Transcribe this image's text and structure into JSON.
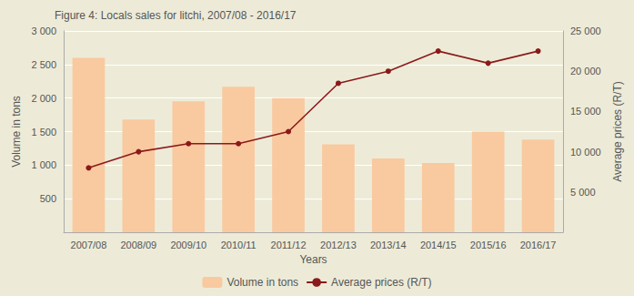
{
  "chart_data": {
    "type": "bar",
    "title": "Figure 4: Locals sales for litchi, 2007/08 - 2016/17",
    "xlabel": "Years",
    "ylabel": "Volume in tons",
    "y2label": "Average prices (R/T)",
    "categories": [
      "2007/08",
      "2008/09",
      "2009/10",
      "2010/11",
      "2011/12",
      "2012/13",
      "2013/14",
      "2014/15",
      "2015/16",
      "2016/17"
    ],
    "series": [
      {
        "name": "Volume in tons",
        "type": "bar",
        "color": "#f9c9a0",
        "values": [
          2600,
          1680,
          1950,
          2170,
          2000,
          1310,
          1100,
          1030,
          1500,
          1380
        ]
      },
      {
        "name": "Average prices (R/T)",
        "type": "line",
        "axis": "y2",
        "color": "#8b1a1a",
        "marker": "circle",
        "values": [
          8000,
          10000,
          11000,
          11000,
          12500,
          18500,
          20000,
          22500,
          21000,
          22500
        ]
      }
    ],
    "ylim": [
      0,
      3000
    ],
    "yticks": [
      500,
      {
        "value": 1000,
        "label": "1 000"
      },
      {
        "value": 1500,
        "label": "1 500"
      },
      {
        "value": 2000,
        "label": "2 000"
      },
      {
        "value": 2500,
        "label": "2 500"
      },
      {
        "value": 3000,
        "label": "3 000"
      }
    ],
    "y2lim": [
      0,
      25000
    ],
    "y2ticks": [
      {
        "value": 5000,
        "label": "5 000"
      },
      {
        "value": 10000,
        "label": "10 000"
      },
      {
        "value": 15000,
        "label": "15 000"
      },
      {
        "value": 20000,
        "label": "20 000"
      },
      {
        "value": 25000,
        "label": "25 000"
      }
    ],
    "grid": true,
    "legend": "bottom"
  }
}
